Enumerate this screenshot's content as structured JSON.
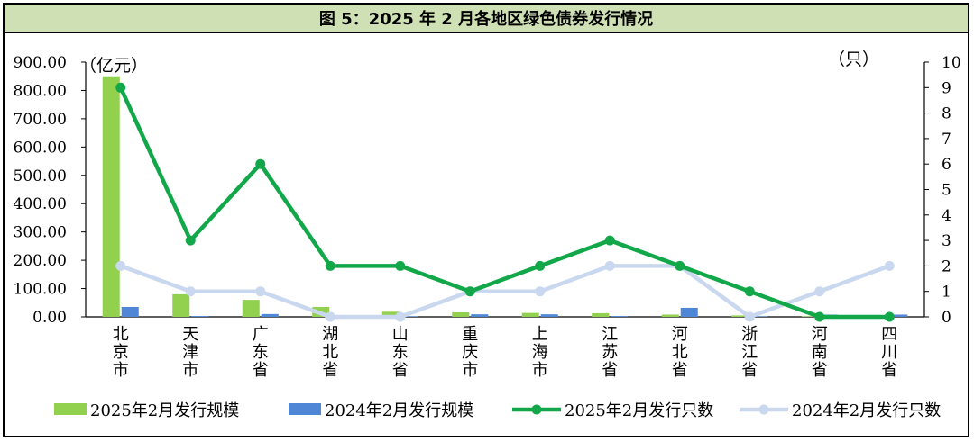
{
  "title": "图 5：2025 年 2 月各地区绿色债券发行情况",
  "colors": {
    "bar_2025": "#92d050",
    "bar_2024": "#4f86d6",
    "line_2025": "#12a84a",
    "line_2024": "#c9d8ee"
  },
  "chart_data": {
    "type": "bar",
    "left_axis_label": "（亿元）",
    "right_axis_label": "（只）",
    "left_ylim": [
      0,
      900
    ],
    "right_ylim": [
      0,
      10
    ],
    "left_ticks": [
      "0.00",
      "100.00",
      "200.00",
      "300.00",
      "400.00",
      "500.00",
      "600.00",
      "700.00",
      "800.00",
      "900.00"
    ],
    "right_ticks": [
      "0",
      "1",
      "2",
      "3",
      "4",
      "5",
      "6",
      "7",
      "8",
      "9",
      "10"
    ],
    "categories": [
      "北京市",
      "天津市",
      "广东省",
      "湖北省",
      "山东省",
      "重庆市",
      "上海市",
      "江苏省",
      "河北省",
      "浙江省",
      "河南省",
      "四川省"
    ],
    "series": [
      {
        "name": "2025年2月发行规模",
        "kind": "bar",
        "axis": "left",
        "values": [
          850,
          80,
          60,
          35,
          18,
          16,
          14,
          13,
          8,
          5,
          2,
          2
        ]
      },
      {
        "name": "2024年2月发行规模",
        "kind": "bar",
        "axis": "left",
        "values": [
          35,
          3,
          10,
          2,
          2,
          9,
          9,
          3,
          32,
          2,
          8,
          8
        ]
      },
      {
        "name": "2025年2月发行只数",
        "kind": "line",
        "axis": "right",
        "values": [
          9,
          3,
          6,
          2,
          2,
          1,
          2,
          3,
          2,
          1,
          0,
          0
        ]
      },
      {
        "name": "2024年2月发行只数",
        "kind": "line",
        "axis": "right",
        "values": [
          2,
          1,
          1,
          0,
          0,
          1,
          1,
          2,
          2,
          0,
          1,
          2
        ]
      }
    ]
  }
}
